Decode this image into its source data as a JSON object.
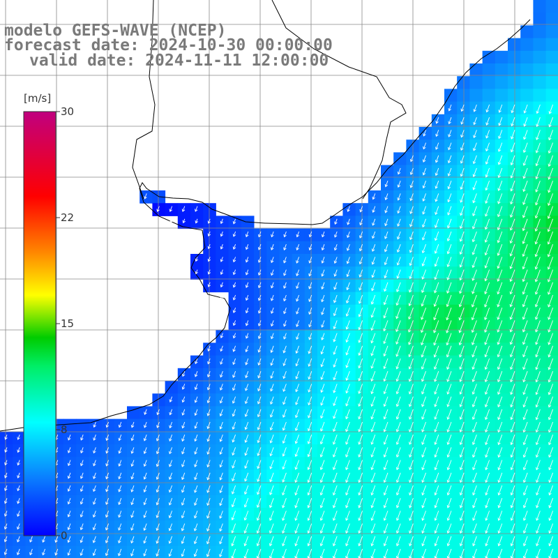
{
  "titles": {
    "model": "modelo GEFS-WAVE (NCEP)",
    "forecast": "forecast date: 2024-10-30 00:00:00",
    "valid": "valid date: 2024-11-11 12:00:00"
  },
  "colorbar": {
    "unit": "[m/s]",
    "ticks": [
      "30",
      "22",
      "15",
      "8",
      "0"
    ],
    "min": 0,
    "max": 30,
    "stops": [
      {
        "v": 0,
        "color": "#0000ff"
      },
      {
        "v": 4,
        "color": "#0a7bff"
      },
      {
        "v": 8,
        "color": "#00ffff"
      },
      {
        "v": 12,
        "color": "#00ee66"
      },
      {
        "v": 14,
        "color": "#00cc00"
      },
      {
        "v": 17,
        "color": "#ffff00"
      },
      {
        "v": 20,
        "color": "#ff8800"
      },
      {
        "v": 24,
        "color": "#ff0000"
      },
      {
        "v": 30,
        "color": "#c0007f"
      }
    ]
  },
  "map": {
    "quantity": "wind speed",
    "unit": "m/s",
    "wind_direction": "from north-northeast (arrows point south-southwest)",
    "field_description": "weak winds (0-4 m/s) near the coast and in the northwest gulf, 6-10 m/s over most of the open sea, up to about 13-14 m/s in the northeast",
    "land_color": "#ffffff",
    "coast_color": "#000000",
    "grid_color": "#888888"
  }
}
